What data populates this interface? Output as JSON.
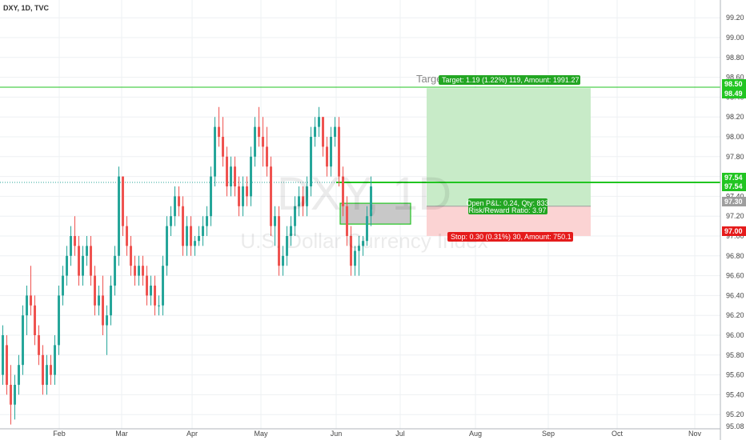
{
  "header": {
    "title": "DXY, 1D, TVC"
  },
  "watermark": {
    "symbol": "DXY, 1D",
    "name": "U.S. Dollar Currency Index"
  },
  "colors": {
    "up": "#26a69a",
    "down": "#ef5350",
    "grid": "#eef0f3",
    "target_zone": "#c8ebc8",
    "stop_zone": "#fbd3d3",
    "green_line": "#21c521",
    "stop_label": "#e51b1b",
    "target_label": "#23a623",
    "entry_label": "#9e9e9e"
  },
  "chart_data": {
    "type": "candlestick",
    "title": "DXY, 1D, TVC",
    "xlabel": "",
    "ylabel": "",
    "ylim": [
      95.0,
      99.35
    ],
    "x_tick_labels": [
      "Feb",
      "Mar",
      "Apr",
      "May",
      "Jun",
      "Jul",
      "Aug",
      "Sep",
      "Oct",
      "Nov"
    ],
    "y_ticks": [
      95.08,
      95.2,
      95.4,
      95.6,
      95.8,
      96.0,
      96.2,
      96.4,
      96.6,
      96.8,
      97.0,
      97.2,
      97.4,
      97.6,
      97.8,
      98.0,
      98.2,
      98.4,
      98.6,
      98.8,
      99.0,
      99.2
    ],
    "y_tick_labels": [
      "95.08",
      "95.20",
      "95.40",
      "95.60",
      "95.80",
      "96.00",
      "96.20",
      "96.40",
      "96.60",
      "96.80",
      "97.00",
      "97.20",
      "97.40",
      "97.60",
      "97.80",
      "98.00",
      "98.20",
      "98.40",
      "98.60",
      "98.80",
      "99.00",
      "99.20"
    ],
    "candles": [
      {
        "o": 95.6,
        "h": 96.1,
        "l": 95.5,
        "c": 96.0
      },
      {
        "o": 95.9,
        "h": 96.0,
        "l": 95.4,
        "c": 95.5
      },
      {
        "o": 95.5,
        "h": 95.7,
        "l": 95.1,
        "c": 95.3
      },
      {
        "o": 95.3,
        "h": 95.6,
        "l": 95.15,
        "c": 95.5
      },
      {
        "o": 95.5,
        "h": 95.8,
        "l": 95.4,
        "c": 95.7
      },
      {
        "o": 95.7,
        "h": 96.3,
        "l": 95.6,
        "c": 96.2
      },
      {
        "o": 96.2,
        "h": 96.5,
        "l": 96.0,
        "c": 96.4
      },
      {
        "o": 96.4,
        "h": 96.7,
        "l": 96.2,
        "c": 96.3
      },
      {
        "o": 96.3,
        "h": 96.4,
        "l": 95.9,
        "c": 96.0
      },
      {
        "o": 96.0,
        "h": 96.1,
        "l": 95.7,
        "c": 95.8
      },
      {
        "o": 95.8,
        "h": 95.9,
        "l": 95.4,
        "c": 95.5
      },
      {
        "o": 95.5,
        "h": 95.8,
        "l": 95.4,
        "c": 95.7
      },
      {
        "o": 95.7,
        "h": 95.8,
        "l": 95.5,
        "c": 95.6
      },
      {
        "o": 95.6,
        "h": 96.0,
        "l": 95.5,
        "c": 95.9
      },
      {
        "o": 95.9,
        "h": 96.5,
        "l": 95.8,
        "c": 96.4
      },
      {
        "o": 96.4,
        "h": 96.7,
        "l": 96.3,
        "c": 96.6
      },
      {
        "o": 96.6,
        "h": 96.9,
        "l": 96.5,
        "c": 96.8
      },
      {
        "o": 96.8,
        "h": 97.1,
        "l": 96.7,
        "c": 97.0
      },
      {
        "o": 97.0,
        "h": 97.2,
        "l": 96.8,
        "c": 96.9
      },
      {
        "o": 96.9,
        "h": 97.0,
        "l": 96.5,
        "c": 96.6
      },
      {
        "o": 96.6,
        "h": 96.9,
        "l": 96.5,
        "c": 96.8
      },
      {
        "o": 96.8,
        "h": 97.0,
        "l": 96.7,
        "c": 96.9
      },
      {
        "o": 96.9,
        "h": 97.0,
        "l": 96.5,
        "c": 96.6
      },
      {
        "o": 96.6,
        "h": 96.7,
        "l": 96.2,
        "c": 96.3
      },
      {
        "o": 96.3,
        "h": 96.5,
        "l": 96.2,
        "c": 96.4
      },
      {
        "o": 96.4,
        "h": 96.6,
        "l": 96.0,
        "c": 96.1
      },
      {
        "o": 96.1,
        "h": 96.3,
        "l": 95.8,
        "c": 96.2
      },
      {
        "o": 96.2,
        "h": 96.6,
        "l": 96.1,
        "c": 96.5
      },
      {
        "o": 96.5,
        "h": 96.9,
        "l": 96.4,
        "c": 96.8
      },
      {
        "o": 96.8,
        "h": 97.7,
        "l": 96.7,
        "c": 97.6
      },
      {
        "o": 97.6,
        "h": 97.6,
        "l": 97.0,
        "c": 97.1
      },
      {
        "o": 97.1,
        "h": 97.2,
        "l": 96.8,
        "c": 96.9
      },
      {
        "o": 96.9,
        "h": 97.0,
        "l": 96.6,
        "c": 96.7
      },
      {
        "o": 96.7,
        "h": 96.8,
        "l": 96.5,
        "c": 96.6
      },
      {
        "o": 96.6,
        "h": 96.8,
        "l": 96.5,
        "c": 96.7
      },
      {
        "o": 96.7,
        "h": 96.8,
        "l": 96.5,
        "c": 96.6
      },
      {
        "o": 96.6,
        "h": 96.7,
        "l": 96.3,
        "c": 96.4
      },
      {
        "o": 96.4,
        "h": 96.6,
        "l": 96.3,
        "c": 96.5
      },
      {
        "o": 96.5,
        "h": 96.6,
        "l": 96.2,
        "c": 96.3
      },
      {
        "o": 96.3,
        "h": 96.4,
        "l": 96.2,
        "c": 96.3
      },
      {
        "o": 96.3,
        "h": 96.8,
        "l": 96.2,
        "c": 96.7
      },
      {
        "o": 96.7,
        "h": 97.2,
        "l": 96.6,
        "c": 97.1
      },
      {
        "o": 97.1,
        "h": 97.3,
        "l": 97.0,
        "c": 97.2
      },
      {
        "o": 97.2,
        "h": 97.5,
        "l": 97.1,
        "c": 97.4
      },
      {
        "o": 97.4,
        "h": 97.5,
        "l": 97.2,
        "c": 97.3
      },
      {
        "o": 97.3,
        "h": 97.4,
        "l": 96.8,
        "c": 96.9
      },
      {
        "o": 96.9,
        "h": 97.2,
        "l": 96.8,
        "c": 97.1
      },
      {
        "o": 97.1,
        "h": 97.2,
        "l": 96.8,
        "c": 96.9
      },
      {
        "o": 96.9,
        "h": 97.0,
        "l": 96.8,
        "c": 96.95
      },
      {
        "o": 96.95,
        "h": 97.1,
        "l": 96.9,
        "c": 97.0
      },
      {
        "o": 97.0,
        "h": 97.2,
        "l": 96.9,
        "c": 97.1
      },
      {
        "o": 97.1,
        "h": 97.3,
        "l": 97.0,
        "c": 97.2
      },
      {
        "o": 97.2,
        "h": 97.7,
        "l": 97.1,
        "c": 97.6
      },
      {
        "o": 97.6,
        "h": 98.2,
        "l": 97.5,
        "c": 98.1
      },
      {
        "o": 98.1,
        "h": 98.3,
        "l": 97.9,
        "c": 98.0
      },
      {
        "o": 98.0,
        "h": 98.2,
        "l": 97.7,
        "c": 97.8
      },
      {
        "o": 97.8,
        "h": 97.9,
        "l": 97.4,
        "c": 97.5
      },
      {
        "o": 97.5,
        "h": 97.8,
        "l": 97.4,
        "c": 97.7
      },
      {
        "o": 97.7,
        "h": 97.8,
        "l": 97.4,
        "c": 97.5
      },
      {
        "o": 97.5,
        "h": 97.6,
        "l": 97.2,
        "c": 97.3
      },
      {
        "o": 97.3,
        "h": 97.6,
        "l": 97.2,
        "c": 97.5
      },
      {
        "o": 97.5,
        "h": 97.6,
        "l": 97.3,
        "c": 97.4
      },
      {
        "o": 97.4,
        "h": 97.9,
        "l": 97.3,
        "c": 97.8
      },
      {
        "o": 97.8,
        "h": 98.2,
        "l": 97.7,
        "c": 98.1
      },
      {
        "o": 98.1,
        "h": 98.3,
        "l": 97.9,
        "c": 98.0
      },
      {
        "o": 98.0,
        "h": 98.2,
        "l": 97.7,
        "c": 97.9
      },
      {
        "o": 97.9,
        "h": 98.1,
        "l": 97.6,
        "c": 97.7
      },
      {
        "o": 97.7,
        "h": 97.8,
        "l": 97.0,
        "c": 97.1
      },
      {
        "o": 97.1,
        "h": 97.3,
        "l": 96.9,
        "c": 97.2
      },
      {
        "o": 97.2,
        "h": 97.3,
        "l": 96.6,
        "c": 96.7
      },
      {
        "o": 96.7,
        "h": 96.9,
        "l": 96.6,
        "c": 96.8
      },
      {
        "o": 96.8,
        "h": 97.1,
        "l": 96.7,
        "c": 97.0
      },
      {
        "o": 97.0,
        "h": 97.2,
        "l": 96.9,
        "c": 97.1
      },
      {
        "o": 97.1,
        "h": 97.4,
        "l": 97.0,
        "c": 97.3
      },
      {
        "o": 97.3,
        "h": 97.5,
        "l": 97.2,
        "c": 97.4
      },
      {
        "o": 97.4,
        "h": 97.5,
        "l": 97.2,
        "c": 97.3
      },
      {
        "o": 97.3,
        "h": 97.6,
        "l": 97.2,
        "c": 97.5
      },
      {
        "o": 97.5,
        "h": 98.1,
        "l": 97.4,
        "c": 98.0
      },
      {
        "o": 98.0,
        "h": 98.2,
        "l": 97.9,
        "c": 98.1
      },
      {
        "o": 98.1,
        "h": 98.3,
        "l": 98.0,
        "c": 98.2
      },
      {
        "o": 98.2,
        "h": 98.2,
        "l": 97.8,
        "c": 97.9
      },
      {
        "o": 97.9,
        "h": 98.0,
        "l": 97.6,
        "c": 97.7
      },
      {
        "o": 97.7,
        "h": 98.1,
        "l": 97.6,
        "c": 98.0
      },
      {
        "o": 98.0,
        "h": 98.2,
        "l": 97.9,
        "c": 98.1
      },
      {
        "o": 98.1,
        "h": 98.2,
        "l": 97.5,
        "c": 97.6
      },
      {
        "o": 97.6,
        "h": 97.7,
        "l": 97.2,
        "c": 97.3
      },
      {
        "o": 97.3,
        "h": 97.4,
        "l": 96.9,
        "c": 97.0
      },
      {
        "o": 97.0,
        "h": 97.1,
        "l": 96.6,
        "c": 96.7
      },
      {
        "o": 96.7,
        "h": 96.9,
        "l": 96.6,
        "c": 96.85
      },
      {
        "o": 96.85,
        "h": 97.0,
        "l": 96.6,
        "c": 96.9
      },
      {
        "o": 96.9,
        "h": 97.0,
        "l": 96.8,
        "c": 96.95
      },
      {
        "o": 96.95,
        "h": 97.3,
        "l": 96.9,
        "c": 97.2
      },
      {
        "o": 97.2,
        "h": 97.6,
        "l": 97.1,
        "c": 97.5
      }
    ],
    "annotations": {
      "target_line": 98.5,
      "entry": 97.3,
      "stop": 97.0,
      "target": 98.49,
      "current_price": 97.54,
      "horizontal_lines": [
        98.5,
        97.54
      ],
      "target_word": "Target",
      "target_text": "Target: 1.19 (1.22%) 119, Amount: 1991.27",
      "stop_text": "Stop: 0.30 (0.31%) 30, Amount: 750.1",
      "pnl_text": "Open P&L: 0.24, Qty: 833",
      "rr_text": "Risk/Reward Ratio: 3.97"
    },
    "price_labels": [
      {
        "text": "98.50",
        "value": 98.5,
        "kind": "target"
      },
      {
        "text": "98.49",
        "value": 98.49,
        "kind": "target"
      },
      {
        "text": "97.54",
        "value": 97.54,
        "kind": "target"
      },
      {
        "text": "97.54",
        "value": 97.54,
        "kind": "target"
      },
      {
        "text": "97.30",
        "value": 97.3,
        "kind": "entry"
      },
      {
        "text": "97.00",
        "value": 97.0,
        "kind": "stop"
      }
    ]
  }
}
